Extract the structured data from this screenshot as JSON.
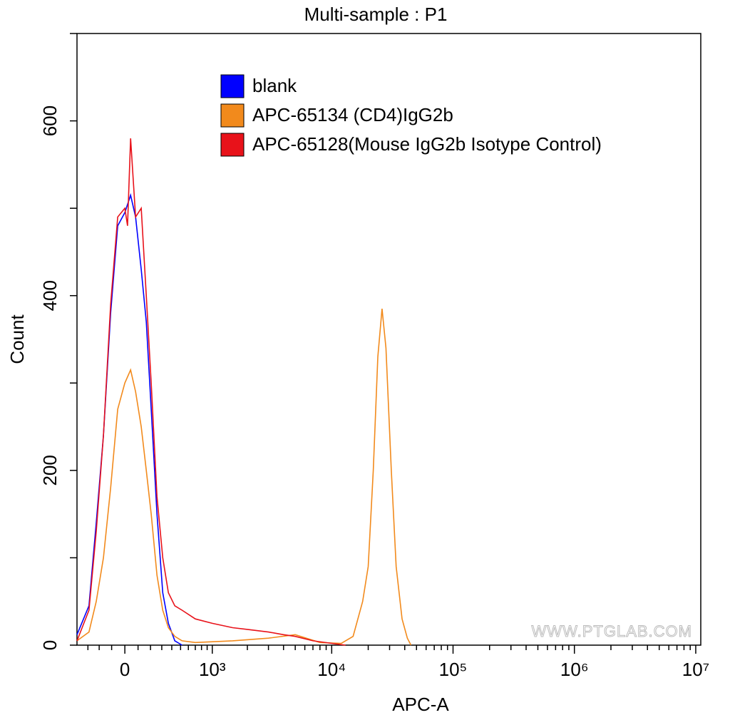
{
  "chart_data": {
    "type": "histogram-overlay",
    "title": "Multi-sample : P1",
    "x_label": "APC-A",
    "y_label": "Count",
    "x_scale": "biexponential",
    "xlim": [
      -410,
      11000000
    ],
    "xticks": [
      0,
      {
        "value": 1000,
        "label": "10³"
      },
      {
        "value": 10000,
        "label": "10⁴"
      },
      {
        "value": 100000,
        "label": "10⁵"
      },
      {
        "value": 1000000,
        "label": "10⁶"
      },
      {
        "value": 10000000,
        "label": "10⁷"
      }
    ],
    "xminorticks": [
      -300,
      -200,
      -100,
      100,
      200,
      300,
      400,
      500,
      600,
      700,
      800,
      900,
      2000,
      3000,
      4000,
      5000,
      6000,
      7000,
      8000,
      9000,
      20000,
      30000,
      40000,
      50000,
      60000,
      70000,
      80000,
      90000,
      200000,
      300000,
      400000,
      500000,
      600000,
      700000,
      800000,
      900000,
      2000000,
      3000000,
      4000000,
      5000000,
      6000000,
      7000000,
      8000000,
      9000000
    ],
    "ylim": [
      0,
      700
    ],
    "yticks": [
      0,
      200,
      400,
      600
    ],
    "yminorticks": [
      100,
      300,
      500,
      700
    ],
    "legend": "top-right",
    "watermark": "WWW.PTGLAB.COM",
    "series": [
      {
        "name": "blank",
        "color": "#0000ff",
        "x": [
          -410,
          -290,
          -225,
          -165,
          -108,
          -54,
          0,
          43,
          81,
          125,
          165,
          206,
          256,
          309,
          365,
          433,
          518
        ],
        "values": [
          12,
          45,
          140,
          240,
          380,
          480,
          495,
          515,
          490,
          430,
          370,
          270,
          150,
          60,
          25,
          5,
          0
        ]
      },
      {
        "name": "APC-65134 (CD4)IgG2b",
        "color": "#f28a1c",
        "x": [
          -410,
          -290,
          -225,
          -165,
          -108,
          -54,
          0,
          43,
          81,
          125,
          165,
          206,
          256,
          309,
          365,
          433,
          518,
          700,
          1500,
          3000,
          5000,
          8000,
          12000,
          15000,
          18000,
          20000,
          22000,
          24000,
          26000,
          28000,
          31000,
          34000,
          38000,
          42000,
          45000
        ],
        "values": [
          5,
          15,
          50,
          100,
          180,
          270,
          300,
          315,
          290,
          250,
          200,
          150,
          80,
          40,
          20,
          10,
          5,
          3,
          5,
          8,
          12,
          3,
          2,
          10,
          50,
          90,
          200,
          330,
          385,
          340,
          200,
          90,
          30,
          8,
          0
        ]
      },
      {
        "name": "APC-65128(Mouse IgG2b Isotype Control)",
        "color": "#e8121a",
        "x": [
          -410,
          -290,
          -225,
          -165,
          -108,
          -54,
          0,
          20,
          43,
          81,
          125,
          165,
          206,
          256,
          309,
          365,
          433,
          518,
          700,
          1000,
          1500,
          2000,
          3000,
          4000,
          5000,
          7000,
          10000,
          13000
        ],
        "values": [
          5,
          40,
          130,
          240,
          390,
          490,
          500,
          480,
          580,
          490,
          500,
          400,
          300,
          170,
          100,
          60,
          45,
          40,
          30,
          25,
          20,
          18,
          15,
          12,
          10,
          5,
          2,
          0
        ]
      }
    ]
  }
}
